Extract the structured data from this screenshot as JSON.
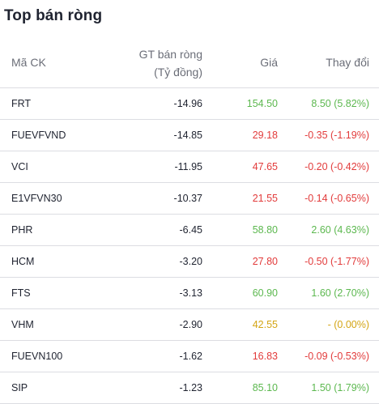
{
  "title": "Top bán ròng",
  "columns": {
    "code": "Mã CK",
    "value_line1": "GT bán ròng",
    "value_line2": "(Tỷ đồng)",
    "price": "Giá",
    "change": "Thay đổi"
  },
  "colors": {
    "up": "#5cb84f",
    "down": "#e23b3b",
    "ref": "#d4a514",
    "text": "#1f2330",
    "muted": "#6b6e78",
    "divider": "#dcdde2"
  },
  "rows": [
    {
      "code": "FRT",
      "value": "-14.96",
      "price": "154.50",
      "change": "8.50 (5.82%)",
      "trend": "up"
    },
    {
      "code": "FUEVFVND",
      "value": "-14.85",
      "price": "29.18",
      "change": "-0.35 (-1.19%)",
      "trend": "down"
    },
    {
      "code": "VCI",
      "value": "-11.95",
      "price": "47.65",
      "change": "-0.20 (-0.42%)",
      "trend": "down"
    },
    {
      "code": "E1VFVN30",
      "value": "-10.37",
      "price": "21.55",
      "change": "-0.14 (-0.65%)",
      "trend": "down"
    },
    {
      "code": "PHR",
      "value": "-6.45",
      "price": "58.80",
      "change": "2.60 (4.63%)",
      "trend": "up"
    },
    {
      "code": "HCM",
      "value": "-3.20",
      "price": "27.80",
      "change": "-0.50 (-1.77%)",
      "trend": "down"
    },
    {
      "code": "FTS",
      "value": "-3.13",
      "price": "60.90",
      "change": "1.60 (2.70%)",
      "trend": "up"
    },
    {
      "code": "VHM",
      "value": "-2.90",
      "price": "42.55",
      "change": "- (0.00%)",
      "trend": "ref"
    },
    {
      "code": "FUEVN100",
      "value": "-1.62",
      "price": "16.83",
      "change": "-0.09 (-0.53%)",
      "trend": "down"
    },
    {
      "code": "SIP",
      "value": "-1.23",
      "price": "85.10",
      "change": "1.50 (1.79%)",
      "trend": "up"
    }
  ]
}
